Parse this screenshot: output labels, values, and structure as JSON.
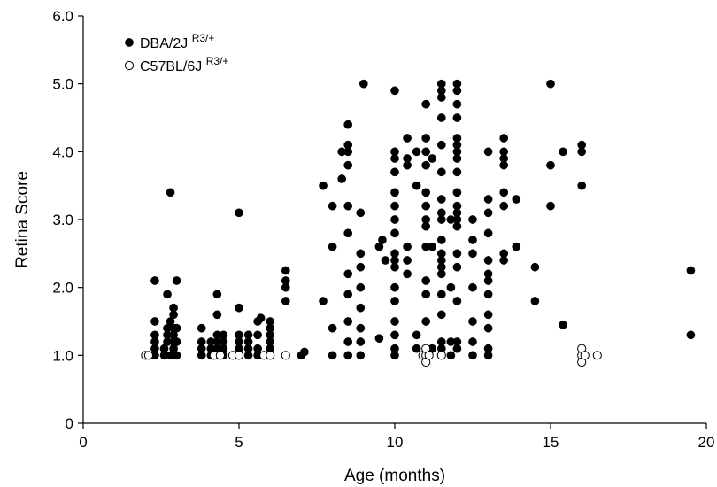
{
  "chart_data": {
    "type": "scatter",
    "xlabel": "Age (months)",
    "ylabel": "Retina Score",
    "xlim": [
      0,
      20
    ],
    "ylim": [
      0,
      6
    ],
    "xticks": [
      0,
      5,
      10,
      15,
      20
    ],
    "yticks": [
      "0",
      "1.0",
      "2.0",
      "3.0",
      "4.0",
      "5.0",
      "6.0"
    ],
    "grid": false,
    "legend": "top-left",
    "series": [
      {
        "name": "DBA/2J",
        "name_superscript": "R3/+",
        "marker": "filled-circle",
        "color": "#000000",
        "points": [
          [
            2.3,
            1.0
          ],
          [
            2.3,
            1.1
          ],
          [
            2.3,
            1.2
          ],
          [
            2.3,
            1.3
          ],
          [
            2.3,
            1.5
          ],
          [
            2.3,
            2.1
          ],
          [
            2.6,
            1.0
          ],
          [
            2.6,
            1.1
          ],
          [
            2.7,
            1.2
          ],
          [
            2.7,
            1.3
          ],
          [
            2.7,
            1.4
          ],
          [
            2.7,
            1.9
          ],
          [
            2.8,
            3.4
          ],
          [
            2.8,
            1.0
          ],
          [
            2.8,
            1.5
          ],
          [
            2.9,
            1.0
          ],
          [
            2.9,
            1.1
          ],
          [
            2.9,
            1.2
          ],
          [
            2.9,
            1.3
          ],
          [
            2.9,
            1.4
          ],
          [
            2.9,
            1.6
          ],
          [
            2.9,
            1.7
          ],
          [
            3.0,
            1.0
          ],
          [
            3.0,
            1.2
          ],
          [
            3.0,
            1.4
          ],
          [
            3.0,
            2.1
          ],
          [
            3.8,
            1.0
          ],
          [
            3.8,
            1.1
          ],
          [
            3.8,
            1.2
          ],
          [
            3.8,
            1.4
          ],
          [
            4.1,
            1.0
          ],
          [
            4.1,
            1.1
          ],
          [
            4.1,
            1.2
          ],
          [
            4.3,
            1.0
          ],
          [
            4.3,
            1.1
          ],
          [
            4.3,
            1.2
          ],
          [
            4.3,
            1.3
          ],
          [
            4.3,
            1.6
          ],
          [
            4.3,
            1.9
          ],
          [
            4.5,
            1.0
          ],
          [
            4.5,
            1.1
          ],
          [
            4.5,
            1.2
          ],
          [
            4.5,
            1.3
          ],
          [
            5.0,
            1.0
          ],
          [
            5.0,
            1.1
          ],
          [
            5.0,
            1.2
          ],
          [
            5.0,
            1.3
          ],
          [
            5.0,
            1.7
          ],
          [
            5.0,
            3.1
          ],
          [
            5.3,
            1.0
          ],
          [
            5.3,
            1.1
          ],
          [
            5.3,
            1.2
          ],
          [
            5.3,
            1.3
          ],
          [
            5.6,
            1.0
          ],
          [
            5.6,
            1.1
          ],
          [
            5.6,
            1.3
          ],
          [
            5.6,
            1.5
          ],
          [
            5.7,
            1.55
          ],
          [
            6.0,
            1.0
          ],
          [
            6.0,
            1.1
          ],
          [
            6.0,
            1.2
          ],
          [
            6.0,
            1.3
          ],
          [
            6.0,
            1.4
          ],
          [
            6.0,
            1.5
          ],
          [
            6.5,
            1.8
          ],
          [
            6.5,
            2.0
          ],
          [
            6.5,
            2.1
          ],
          [
            6.5,
            2.25
          ],
          [
            7.0,
            1.0
          ],
          [
            7.1,
            1.05
          ],
          [
            7.7,
            1.8
          ],
          [
            7.7,
            3.5
          ],
          [
            8.0,
            1.0
          ],
          [
            8.0,
            1.4
          ],
          [
            8.0,
            2.6
          ],
          [
            8.0,
            3.2
          ],
          [
            8.3,
            3.6
          ],
          [
            8.3,
            4.0
          ],
          [
            8.5,
            1.0
          ],
          [
            8.5,
            1.2
          ],
          [
            8.5,
            1.5
          ],
          [
            8.5,
            1.9
          ],
          [
            8.5,
            2.2
          ],
          [
            8.5,
            2.8
          ],
          [
            8.5,
            3.2
          ],
          [
            8.5,
            3.8
          ],
          [
            8.5,
            4.0
          ],
          [
            8.5,
            4.1
          ],
          [
            8.5,
            4.4
          ],
          [
            8.9,
            1.0
          ],
          [
            8.9,
            1.2
          ],
          [
            8.9,
            1.4
          ],
          [
            8.9,
            1.7
          ],
          [
            8.9,
            2.0
          ],
          [
            8.9,
            2.3
          ],
          [
            8.9,
            2.5
          ],
          [
            8.9,
            3.1
          ],
          [
            9.0,
            5.0
          ],
          [
            9.5,
            1.25
          ],
          [
            9.5,
            2.6
          ],
          [
            9.6,
            2.7
          ],
          [
            9.7,
            2.4
          ],
          [
            10.0,
            1.0
          ],
          [
            10.0,
            1.1
          ],
          [
            10.0,
            1.3
          ],
          [
            10.0,
            1.5
          ],
          [
            10.0,
            1.8
          ],
          [
            10.0,
            2.0
          ],
          [
            10.0,
            2.3
          ],
          [
            10.0,
            2.4
          ],
          [
            10.0,
            2.5
          ],
          [
            10.0,
            2.8
          ],
          [
            10.0,
            3.0
          ],
          [
            10.0,
            3.2
          ],
          [
            10.0,
            3.4
          ],
          [
            10.0,
            3.7
          ],
          [
            10.0,
            3.9
          ],
          [
            10.0,
            4.0
          ],
          [
            10.0,
            4.9
          ],
          [
            10.4,
            2.2
          ],
          [
            10.4,
            2.4
          ],
          [
            10.4,
            2.6
          ],
          [
            10.4,
            3.8
          ],
          [
            10.4,
            3.9
          ],
          [
            10.4,
            4.2
          ],
          [
            10.7,
            1.1
          ],
          [
            10.7,
            1.3
          ],
          [
            10.7,
            3.5
          ],
          [
            10.7,
            4.0
          ],
          [
            11.0,
            1.0
          ],
          [
            11.0,
            1.5
          ],
          [
            11.0,
            1.9
          ],
          [
            11.0,
            2.1
          ],
          [
            11.0,
            2.6
          ],
          [
            11.0,
            2.9
          ],
          [
            11.0,
            3.0
          ],
          [
            11.0,
            3.2
          ],
          [
            11.0,
            3.4
          ],
          [
            11.0,
            3.8
          ],
          [
            11.0,
            4.0
          ],
          [
            11.0,
            4.2
          ],
          [
            11.0,
            4.7
          ],
          [
            11.2,
            1.1
          ],
          [
            11.2,
            2.6
          ],
          [
            11.2,
            3.9
          ],
          [
            11.5,
            1.0
          ],
          [
            11.5,
            1.1
          ],
          [
            11.5,
            1.2
          ],
          [
            11.5,
            1.6
          ],
          [
            11.5,
            1.9
          ],
          [
            11.5,
            2.2
          ],
          [
            11.5,
            2.3
          ],
          [
            11.5,
            2.4
          ],
          [
            11.5,
            2.5
          ],
          [
            11.5,
            2.7
          ],
          [
            11.5,
            3.0
          ],
          [
            11.5,
            3.1
          ],
          [
            11.5,
            3.3
          ],
          [
            11.5,
            3.7
          ],
          [
            11.5,
            4.1
          ],
          [
            11.5,
            4.5
          ],
          [
            11.5,
            4.8
          ],
          [
            11.5,
            4.9
          ],
          [
            11.5,
            5.0
          ],
          [
            11.8,
            1.0
          ],
          [
            11.8,
            1.2
          ],
          [
            11.8,
            2.0
          ],
          [
            11.8,
            3.0
          ],
          [
            12.0,
            1.1
          ],
          [
            12.0,
            1.2
          ],
          [
            12.0,
            1.8
          ],
          [
            12.0,
            2.3
          ],
          [
            12.0,
            2.5
          ],
          [
            12.0,
            2.9
          ],
          [
            12.0,
            3.0
          ],
          [
            12.0,
            3.1
          ],
          [
            12.0,
            3.2
          ],
          [
            12.0,
            3.4
          ],
          [
            12.0,
            3.7
          ],
          [
            12.0,
            3.9
          ],
          [
            12.0,
            4.0
          ],
          [
            12.0,
            4.1
          ],
          [
            12.0,
            4.2
          ],
          [
            12.0,
            4.5
          ],
          [
            12.0,
            4.7
          ],
          [
            12.0,
            4.9
          ],
          [
            12.0,
            5.0
          ],
          [
            12.5,
            1.0
          ],
          [
            12.5,
            1.2
          ],
          [
            12.5,
            1.5
          ],
          [
            12.5,
            2.0
          ],
          [
            12.5,
            2.5
          ],
          [
            12.5,
            2.7
          ],
          [
            12.5,
            3.0
          ],
          [
            13.0,
            1.0
          ],
          [
            13.0,
            1.1
          ],
          [
            13.0,
            1.4
          ],
          [
            13.0,
            1.6
          ],
          [
            13.0,
            1.9
          ],
          [
            13.0,
            2.1
          ],
          [
            13.0,
            2.2
          ],
          [
            13.0,
            2.4
          ],
          [
            13.0,
            2.8
          ],
          [
            13.0,
            3.1
          ],
          [
            13.0,
            3.3
          ],
          [
            13.0,
            4.0
          ],
          [
            13.5,
            2.4
          ],
          [
            13.5,
            2.5
          ],
          [
            13.5,
            3.2
          ],
          [
            13.5,
            3.4
          ],
          [
            13.5,
            3.8
          ],
          [
            13.5,
            3.9
          ],
          [
            13.5,
            4.0
          ],
          [
            13.5,
            4.2
          ],
          [
            13.9,
            2.6
          ],
          [
            13.9,
            3.3
          ],
          [
            14.5,
            1.8
          ],
          [
            14.5,
            2.3
          ],
          [
            15.0,
            3.2
          ],
          [
            15.0,
            3.8
          ],
          [
            15.0,
            5.0
          ],
          [
            15.4,
            4.0
          ],
          [
            15.4,
            1.45
          ],
          [
            16.0,
            3.5
          ],
          [
            16.0,
            4.0
          ],
          [
            16.0,
            4.1
          ],
          [
            19.5,
            2.25
          ],
          [
            19.5,
            1.3
          ]
        ]
      },
      {
        "name": "C57BL/6J",
        "name_superscript": "R3/+",
        "marker": "open-circle",
        "color": "#000000",
        "points": [
          [
            2.0,
            1.0
          ],
          [
            2.1,
            1.0
          ],
          [
            4.2,
            1.0
          ],
          [
            4.4,
            1.0
          ],
          [
            4.8,
            1.0
          ],
          [
            5.0,
            1.0
          ],
          [
            5.8,
            1.0
          ],
          [
            6.0,
            1.0
          ],
          [
            6.5,
            1.0
          ],
          [
            10.9,
            1.0
          ],
          [
            11.0,
            1.0
          ],
          [
            11.0,
            1.1
          ],
          [
            11.0,
            0.9
          ],
          [
            11.1,
            1.0
          ],
          [
            11.5,
            1.0
          ],
          [
            16.0,
            1.0
          ],
          [
            16.0,
            1.1
          ],
          [
            16.0,
            0.9
          ],
          [
            16.1,
            1.0
          ],
          [
            16.5,
            1.0
          ]
        ]
      }
    ]
  }
}
